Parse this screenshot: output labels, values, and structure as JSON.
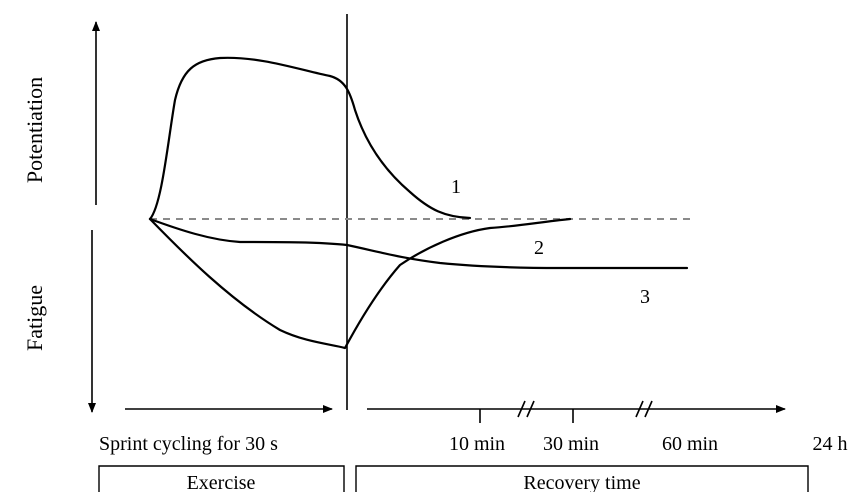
{
  "axis_labels": {
    "potentiation": "Potentiation",
    "fatigue": "Fatigue"
  },
  "curve_labels": {
    "c1": "1",
    "c2": "2",
    "c3": "3"
  },
  "time_labels": {
    "sprint": "Sprint cycling for 30 s",
    "t10": "10 min",
    "t30": "30 min",
    "t60": "60 min",
    "t24": "24 h"
  },
  "phases": {
    "exercise": "Exercise",
    "recovery": "Recovery time"
  }
}
